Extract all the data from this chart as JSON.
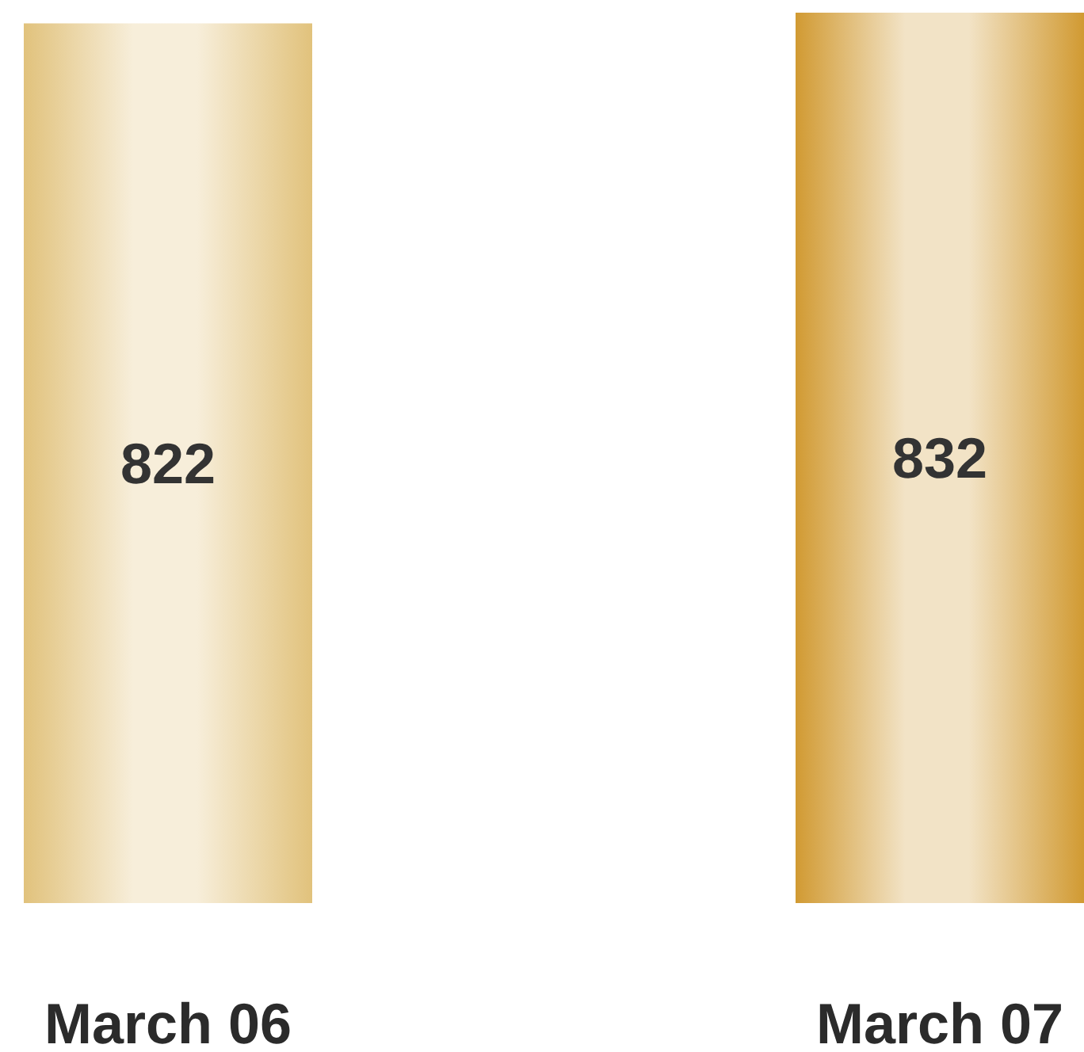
{
  "chart_data": {
    "type": "bar",
    "categories": [
      "March 06",
      "March 07"
    ],
    "values": [
      822,
      832
    ],
    "colors": [
      "#e1c27c",
      "#d19a32"
    ],
    "data_labels": true
  }
}
